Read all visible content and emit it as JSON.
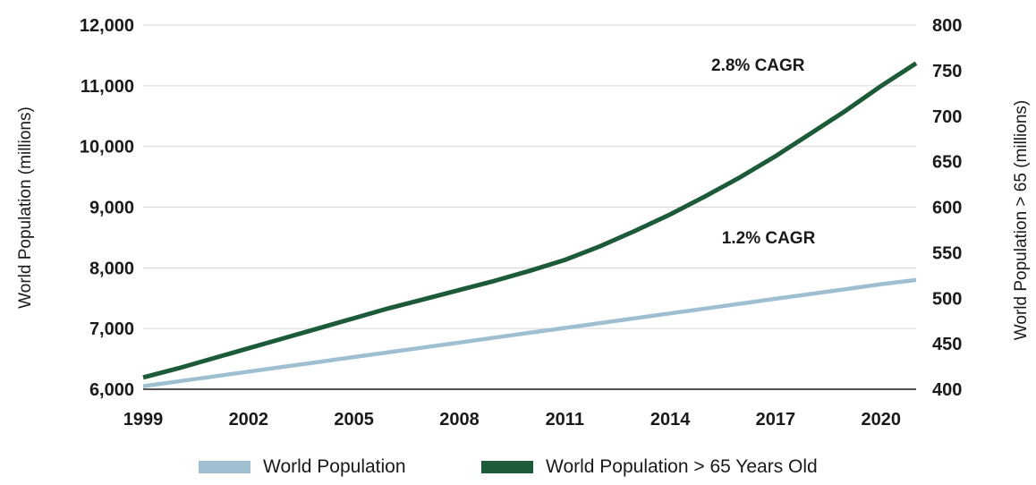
{
  "chart_data": {
    "type": "line",
    "title": "",
    "ylabel": "World Population (millions)",
    "y2label": "World Population > 65 (millions)",
    "x_ticks": [
      "1999",
      "2002",
      "2005",
      "2008",
      "2011",
      "2014",
      "2017",
      "2020"
    ],
    "xlim": [
      1999,
      2021
    ],
    "ylim": [
      6000,
      12000
    ],
    "y_ticks": [
      "6,000",
      "7,000",
      "8,000",
      "9,000",
      "10,000",
      "11,000",
      "12,000"
    ],
    "y2lim": [
      400,
      800
    ],
    "y2_ticks": [
      "400",
      "450",
      "500",
      "550",
      "600",
      "650",
      "700",
      "750",
      "800"
    ],
    "grid": true,
    "legend_position": "bottom",
    "series": [
      {
        "name": "World Population",
        "axis": "left",
        "color": "#9dbfcf",
        "x": [
          1999,
          2000,
          2001,
          2002,
          2003,
          2004,
          2005,
          2006,
          2007,
          2008,
          2009,
          2010,
          2011,
          2012,
          2013,
          2014,
          2015,
          2016,
          2017,
          2018,
          2019,
          2020,
          2021
        ],
        "values": [
          6050,
          6130,
          6210,
          6290,
          6370,
          6450,
          6530,
          6610,
          6690,
          6770,
          6850,
          6930,
          7010,
          7090,
          7170,
          7250,
          7330,
          7410,
          7490,
          7570,
          7650,
          7730,
          7800
        ]
      },
      {
        "name": "World Population > 65 Years Old",
        "axis": "right",
        "color": "#1c5a3a",
        "x": [
          1999,
          2000,
          2001,
          2002,
          2003,
          2004,
          2005,
          2006,
          2007,
          2008,
          2009,
          2010,
          2011,
          2012,
          2013,
          2014,
          2015,
          2016,
          2017,
          2018,
          2019,
          2020,
          2021
        ],
        "values": [
          413,
          423,
          434,
          445,
          456,
          467,
          478,
          489,
          499,
          509,
          519,
          530,
          542,
          557,
          574,
          592,
          612,
          633,
          656,
          681,
          706,
          733,
          758
        ]
      }
    ],
    "annotations": [
      {
        "text": "2.8% CAGR",
        "x": 2016.5,
        "y": 750,
        "axis": "right"
      },
      {
        "text": "1.2% CAGR",
        "x": 2016.8,
        "y": 8400,
        "axis": "left"
      }
    ]
  }
}
